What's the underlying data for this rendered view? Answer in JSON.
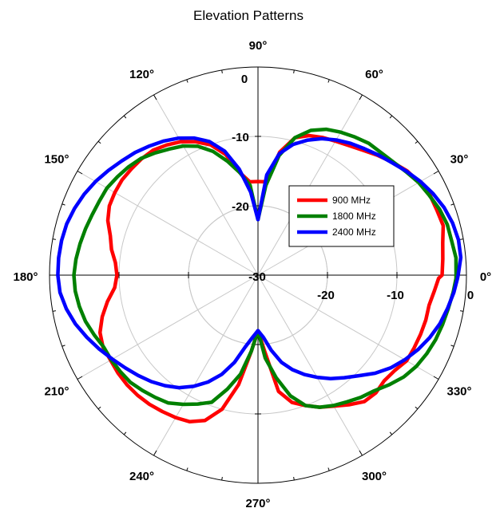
{
  "chart_data": {
    "type": "line",
    "subtype": "polar",
    "title": "Elevation Patterns",
    "angle_tick_labels": [
      "0°",
      "30°",
      "60°",
      "90°",
      "120°",
      "150°",
      "180°",
      "210°",
      "240°",
      "270°",
      "300°",
      "330°"
    ],
    "radial_tick_labels": [
      "-30",
      "-20",
      "-10",
      "0"
    ],
    "radial_range": [
      -30,
      0
    ],
    "grid": true,
    "legend_position": "center-right",
    "series": [
      {
        "name": "900 MHz",
        "color": "#ff0000",
        "points": [
          [
            0,
            -3.5
          ],
          [
            5,
            -3.3
          ],
          [
            10,
            -3
          ],
          [
            15,
            -2.4
          ],
          [
            20,
            -2.6
          ],
          [
            25,
            -2.7
          ],
          [
            30,
            -3.2
          ],
          [
            35,
            -3.8
          ],
          [
            40,
            -4.7
          ],
          [
            45,
            -5.6
          ],
          [
            50,
            -6.5
          ],
          [
            55,
            -7.2
          ],
          [
            60,
            -7.7
          ],
          [
            65,
            -8.1
          ],
          [
            70,
            -8.6
          ],
          [
            75,
            -9.5
          ],
          [
            80,
            -12
          ],
          [
            85,
            -16.5
          ],
          [
            90,
            -16.5
          ],
          [
            95,
            -16.5
          ],
          [
            100,
            -15
          ],
          [
            105,
            -12
          ],
          [
            110,
            -10
          ],
          [
            115,
            -8.8
          ],
          [
            120,
            -7.8
          ],
          [
            125,
            -7.1
          ],
          [
            130,
            -6.5
          ],
          [
            135,
            -6.3
          ],
          [
            140,
            -6.2
          ],
          [
            145,
            -6.1
          ],
          [
            150,
            -6.2
          ],
          [
            155,
            -6.4
          ],
          [
            160,
            -7.0
          ],
          [
            165,
            -8.0
          ],
          [
            170,
            -8.6
          ],
          [
            175,
            -9.4
          ],
          [
            180,
            -9.7
          ],
          [
            185,
            -9.3
          ],
          [
            190,
            -8.0
          ],
          [
            195,
            -6.8
          ],
          [
            200,
            -5.8
          ],
          [
            205,
            -5.4
          ],
          [
            210,
            -5.5
          ],
          [
            215,
            -5.4
          ],
          [
            220,
            -5.4
          ],
          [
            225,
            -5.5
          ],
          [
            230,
            -5.7
          ],
          [
            235,
            -6.0
          ],
          [
            240,
            -6.3
          ],
          [
            245,
            -6.7
          ],
          [
            250,
            -7.7
          ],
          [
            255,
            -10
          ],
          [
            260,
            -14
          ],
          [
            265,
            -19
          ],
          [
            270,
            -22
          ],
          [
            275,
            -19
          ],
          [
            280,
            -13
          ],
          [
            285,
            -11
          ],
          [
            290,
            -10
          ],
          [
            295,
            -9.0
          ],
          [
            300,
            -8.2
          ],
          [
            305,
            -7.2
          ],
          [
            310,
            -6.2
          ],
          [
            315,
            -6.0
          ],
          [
            320,
            -6.3
          ],
          [
            325,
            -6.0
          ],
          [
            330,
            -5.3
          ],
          [
            335,
            -5.2
          ],
          [
            340,
            -5.1
          ],
          [
            345,
            -5.0
          ],
          [
            350,
            -5.0
          ],
          [
            355,
            -4.5
          ],
          [
            359,
            -4.0
          ]
        ]
      },
      {
        "name": "1800 MHz",
        "color": "#008000",
        "points": [
          [
            0,
            -1.5
          ],
          [
            5,
            -1.4
          ],
          [
            10,
            -1.7
          ],
          [
            15,
            -1.8
          ],
          [
            20,
            -2.2
          ],
          [
            25,
            -2.8
          ],
          [
            30,
            -3.3
          ],
          [
            35,
            -4.0
          ],
          [
            40,
            -4.6
          ],
          [
            45,
            -5.0
          ],
          [
            50,
            -5.2
          ],
          [
            55,
            -5.7
          ],
          [
            60,
            -6.2
          ],
          [
            65,
            -6.8
          ],
          [
            70,
            -7.8
          ],
          [
            75,
            -9.5
          ],
          [
            80,
            -12.5
          ],
          [
            85,
            -17
          ],
          [
            90,
            -22
          ],
          [
            95,
            -17
          ],
          [
            100,
            -15
          ],
          [
            105,
            -13
          ],
          [
            110,
            -11
          ],
          [
            115,
            -9.5
          ],
          [
            120,
            -8.5
          ],
          [
            125,
            -7.8
          ],
          [
            130,
            -7.0
          ],
          [
            135,
            -6.2
          ],
          [
            140,
            -5.7
          ],
          [
            145,
            -5.3
          ],
          [
            150,
            -4.9
          ],
          [
            155,
            -4.8
          ],
          [
            160,
            -4.6
          ],
          [
            165,
            -4.3
          ],
          [
            170,
            -4.0
          ],
          [
            175,
            -3.7
          ],
          [
            180,
            -3.5
          ],
          [
            185,
            -3.6
          ],
          [
            190,
            -3.9
          ],
          [
            195,
            -4.3
          ],
          [
            200,
            -4.9
          ],
          [
            205,
            -5.5
          ],
          [
            210,
            -5.6
          ],
          [
            215,
            -5.8
          ],
          [
            220,
            -6.0
          ],
          [
            225,
            -6.5
          ],
          [
            230,
            -7.0
          ],
          [
            235,
            -7.5
          ],
          [
            240,
            -8.5
          ],
          [
            245,
            -9.5
          ],
          [
            250,
            -10.5
          ],
          [
            255,
            -13
          ],
          [
            260,
            -15.5
          ],
          [
            265,
            -19
          ],
          [
            270,
            -22
          ],
          [
            275,
            -18
          ],
          [
            280,
            -15
          ],
          [
            285,
            -12
          ],
          [
            290,
            -10
          ],
          [
            295,
            -9.0
          ],
          [
            300,
            -8.3
          ],
          [
            305,
            -7.7
          ],
          [
            310,
            -7.0
          ],
          [
            315,
            -6.4
          ],
          [
            320,
            -5.4
          ],
          [
            325,
            -4.4
          ],
          [
            330,
            -3.7
          ],
          [
            335,
            -3.2
          ],
          [
            340,
            -2.8
          ],
          [
            345,
            -2.5
          ],
          [
            350,
            -2.2
          ],
          [
            355,
            -1.8
          ],
          [
            359,
            -1.5
          ]
        ]
      },
      {
        "name": "2400 MHz",
        "color": "#0000ff",
        "points": [
          [
            0,
            -1.2
          ],
          [
            5,
            -0.7
          ],
          [
            10,
            -0.7
          ],
          [
            15,
            -1.0
          ],
          [
            20,
            -1.5
          ],
          [
            25,
            -2.2
          ],
          [
            30,
            -3.0
          ],
          [
            35,
            -3.9
          ],
          [
            40,
            -4.8
          ],
          [
            45,
            -5.5
          ],
          [
            50,
            -6.2
          ],
          [
            55,
            -6.8
          ],
          [
            60,
            -7.5
          ],
          [
            65,
            -8.3
          ],
          [
            70,
            -9.3
          ],
          [
            75,
            -10.5
          ],
          [
            80,
            -12.2
          ],
          [
            85,
            -15.5
          ],
          [
            90,
            -22
          ],
          [
            95,
            -18
          ],
          [
            100,
            -14.5
          ],
          [
            105,
            -11.5
          ],
          [
            110,
            -9.5
          ],
          [
            115,
            -8.2
          ],
          [
            120,
            -7.2
          ],
          [
            125,
            -6.4
          ],
          [
            130,
            -5.7
          ],
          [
            135,
            -5.0
          ],
          [
            140,
            -4.4
          ],
          [
            145,
            -3.7
          ],
          [
            150,
            -3.0
          ],
          [
            155,
            -2.4
          ],
          [
            160,
            -1.9
          ],
          [
            165,
            -1.5
          ],
          [
            170,
            -1.3
          ],
          [
            175,
            -1.2
          ],
          [
            180,
            -1.2
          ],
          [
            185,
            -1.4
          ],
          [
            190,
            -2.0
          ],
          [
            195,
            -2.8
          ],
          [
            200,
            -3.8
          ],
          [
            205,
            -4.8
          ],
          [
            210,
            -5.8
          ],
          [
            215,
            -6.7
          ],
          [
            220,
            -7.5
          ],
          [
            225,
            -8.3
          ],
          [
            230,
            -9.2
          ],
          [
            235,
            -10.2
          ],
          [
            240,
            -11.5
          ],
          [
            245,
            -13.0
          ],
          [
            250,
            -14.8
          ],
          [
            255,
            -17
          ],
          [
            260,
            -19.5
          ],
          [
            265,
            -21
          ],
          [
            270,
            -22
          ],
          [
            275,
            -21
          ],
          [
            280,
            -19
          ],
          [
            285,
            -17
          ],
          [
            290,
            -15.5
          ],
          [
            295,
            -14.2
          ],
          [
            300,
            -13.0
          ],
          [
            305,
            -11.8
          ],
          [
            310,
            -10.7
          ],
          [
            315,
            -9.5
          ],
          [
            320,
            -8.0
          ],
          [
            325,
            -6.7
          ],
          [
            330,
            -5.6
          ],
          [
            335,
            -4.6
          ],
          [
            340,
            -3.7
          ],
          [
            345,
            -2.9
          ],
          [
            350,
            -2.3
          ],
          [
            355,
            -1.7
          ],
          [
            359,
            -1.3
          ]
        ]
      }
    ]
  }
}
